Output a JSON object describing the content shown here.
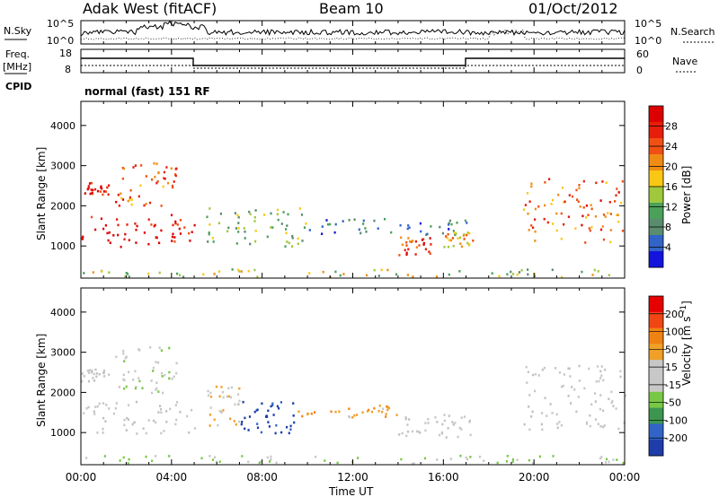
{
  "header": {
    "station": "Adak West (fitACF)",
    "beam": "Beam 10",
    "date": "01/Oct/2012"
  },
  "noise_panel": {
    "left_label": "N.Sky",
    "left_ticks": [
      "10^5",
      "10^0"
    ],
    "right_label": "N.Search",
    "right_ticks": [
      "10^5",
      "10^0"
    ]
  },
  "freq_panel": {
    "left_label_1": "Freq.",
    "left_label_2": "[MHz]",
    "left_ticks": [
      "18",
      "8"
    ],
    "right_label": "Nave",
    "right_ticks": [
      "60",
      "0"
    ]
  },
  "cpid_panel": {
    "label": "CPID",
    "text": "normal (fast) 151 RF"
  },
  "colors": {
    "power_scale": [
      "#1414dc",
      "#3264c8",
      "#5a8c6e",
      "#4ba05a",
      "#a0c83c",
      "#fac814",
      "#f08c14",
      "#f05014",
      "#e61e0a",
      "#dc0000"
    ],
    "velocity_scale": [
      "#1e3caa",
      "#3264c8",
      "#3c9650",
      "#78c846",
      "#c8c8c8",
      "#c8c8c8",
      "#f0a028",
      "#f08214",
      "#f04614",
      "#e60000"
    ],
    "ground_scatter": "#c0c0c0"
  },
  "chart_data": [
    {
      "type": "heatmap",
      "title": "",
      "xlabel": "",
      "ylabel": "Slant Range [km]",
      "ylim": [
        200,
        4600
      ],
      "x_ticks": [
        "00:00",
        "04:00",
        "08:00",
        "12:00",
        "16:00",
        "20:00",
        "00:00"
      ],
      "y_ticks": [
        "1000",
        "2000",
        "3000",
        "4000"
      ],
      "colorbar": {
        "label": "Power [dB]",
        "ticks": [
          "28",
          "24",
          "20",
          "16",
          "12",
          "8",
          "4"
        ],
        "range": [
          0,
          30
        ]
      },
      "echo_regions": [
        {
          "t_start": 0.0,
          "t_end": 5.0,
          "range_km": [
            1000,
            1800
          ],
          "value": 28
        },
        {
          "t_start": 0.0,
          "t_end": 1.2,
          "range_km": [
            2300,
            2600
          ],
          "value": 27
        },
        {
          "t_start": 1.5,
          "t_end": 4.2,
          "range_km": [
            2000,
            3200
          ],
          "value": 22
        },
        {
          "t_start": 5.5,
          "t_end": 10.0,
          "range_km": [
            1000,
            2000
          ],
          "value": 12
        },
        {
          "t_start": 10.0,
          "t_end": 17.0,
          "range_km": [
            1300,
            1700
          ],
          "value": 6
        },
        {
          "t_start": 14.0,
          "t_end": 15.5,
          "range_km": [
            800,
            1300
          ],
          "value": 24
        },
        {
          "t_start": 16.0,
          "t_end": 17.5,
          "range_km": [
            1000,
            1400
          ],
          "value": 18
        },
        {
          "t_start": 19.5,
          "t_end": 24.0,
          "range_km": [
            1100,
            2700
          ],
          "value": 22
        },
        {
          "t_start": 0.0,
          "t_end": 24.0,
          "range_km": [
            250,
            450
          ],
          "value": 14
        }
      ]
    },
    {
      "type": "heatmap",
      "title": "",
      "xlabel": "Time UT",
      "ylabel": "Slant Range [km]",
      "ylim": [
        200,
        4600
      ],
      "x_ticks": [
        "00:00",
        "04:00",
        "08:00",
        "12:00",
        "16:00",
        "20:00",
        "00:00"
      ],
      "y_ticks": [
        "1000",
        "2000",
        "3000",
        "4000"
      ],
      "colorbar": {
        "label": "Velocity [m s^-1]",
        "ticks": [
          "200",
          "100",
          "50",
          "15",
          "-15",
          "-50",
          "-100",
          "-200"
        ],
        "range": [
          -250,
          250
        ]
      },
      "echo_regions": [
        {
          "t_start": 0.0,
          "t_end": 5.0,
          "range_km": [
            1000,
            1800
          ],
          "value": 0
        },
        {
          "t_start": 0.0,
          "t_end": 1.2,
          "range_km": [
            2300,
            2600
          ],
          "value": 0
        },
        {
          "t_start": 1.5,
          "t_end": 4.2,
          "range_km": [
            2000,
            3200
          ],
          "value": -30
        },
        {
          "t_start": 5.5,
          "t_end": 7.0,
          "range_km": [
            1200,
            2200
          ],
          "value": 60
        },
        {
          "t_start": 7.0,
          "t_end": 9.5,
          "range_km": [
            1000,
            1800
          ],
          "value": -220
        },
        {
          "t_start": 9.5,
          "t_end": 14.0,
          "range_km": [
            1400,
            1700
          ],
          "value": 80
        },
        {
          "t_start": 14.0,
          "t_end": 17.5,
          "range_km": [
            900,
            1500
          ],
          "value": 0
        },
        {
          "t_start": 19.5,
          "t_end": 24.0,
          "range_km": [
            1100,
            2700
          ],
          "value": 0
        },
        {
          "t_start": 0.0,
          "t_end": 24.0,
          "range_km": [
            250,
            450
          ],
          "value": -60
        }
      ]
    }
  ]
}
